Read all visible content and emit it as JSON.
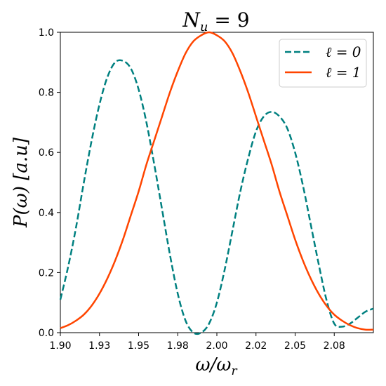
{
  "chart_data": {
    "type": "line",
    "title": "N_u = 9",
    "title_main": "N",
    "title_sub": "u",
    "title_rest": " = 9",
    "xlabel_main": "ω/ω",
    "xlabel_sub": "r",
    "ylabel": "P(ω)  [a.u]",
    "xlim": [
      1.9,
      2.1
    ],
    "ylim": [
      0.0,
      1.0
    ],
    "xticks": [
      1.9,
      1.925,
      1.95,
      1.975,
      2.0,
      2.025,
      2.05,
      2.075
    ],
    "xtick_labels": [
      "1.90",
      "1.93",
      "1.95",
      "1.98",
      "2.00",
      "2.02",
      "2.05",
      "2.08"
    ],
    "yticks": [
      0.0,
      0.2,
      0.4,
      0.6,
      0.8,
      1.0
    ],
    "ytick_labels": [
      "0.0",
      "0.2",
      "0.4",
      "0.6",
      "0.8",
      "1.0"
    ],
    "grid": false,
    "legend_position": "top-right",
    "series": [
      {
        "name": "ℓ = 0",
        "color": "#008080",
        "dash": "dashed",
        "x": [
          1.9,
          1.905,
          1.91,
          1.915,
          1.92,
          1.925,
          1.93,
          1.935,
          1.94,
          1.945,
          1.95,
          1.955,
          1.96,
          1.965,
          1.97,
          1.975,
          1.98,
          1.985,
          1.99,
          1.995,
          2.0,
          2.005,
          2.01,
          2.015,
          2.02,
          2.025,
          2.03,
          2.035,
          2.04,
          2.045,
          2.05,
          2.055,
          2.06,
          2.065,
          2.07,
          2.075,
          2.08,
          2.085,
          2.09,
          2.095,
          2.1
        ],
        "y": [
          0.11,
          0.22,
          0.35,
          0.5,
          0.64,
          0.76,
          0.85,
          0.9,
          0.905,
          0.88,
          0.81,
          0.7,
          0.56,
          0.41,
          0.26,
          0.13,
          0.04,
          0.0,
          0.0,
          0.03,
          0.1,
          0.21,
          0.34,
          0.47,
          0.58,
          0.67,
          0.72,
          0.735,
          0.72,
          0.68,
          0.6,
          0.49,
          0.36,
          0.23,
          0.11,
          0.03,
          0.02,
          0.03,
          0.05,
          0.07,
          0.08
        ]
      },
      {
        "name": "ℓ = 1",
        "color": "#ff4500",
        "dash": "solid",
        "x": [
          1.9,
          1.905,
          1.91,
          1.915,
          1.92,
          1.925,
          1.93,
          1.935,
          1.94,
          1.945,
          1.95,
          1.955,
          1.96,
          1.965,
          1.97,
          1.975,
          1.98,
          1.985,
          1.99,
          1.995,
          2.0,
          2.005,
          2.01,
          2.015,
          2.02,
          2.025,
          2.03,
          2.035,
          2.04,
          2.045,
          2.05,
          2.055,
          2.06,
          2.065,
          2.07,
          2.075,
          2.08,
          2.085,
          2.09,
          2.095,
          2.1
        ],
        "y": [
          0.015,
          0.025,
          0.04,
          0.06,
          0.09,
          0.13,
          0.18,
          0.24,
          0.31,
          0.39,
          0.47,
          0.56,
          0.64,
          0.72,
          0.8,
          0.87,
          0.93,
          0.97,
          0.99,
          1.0,
          0.99,
          0.97,
          0.93,
          0.87,
          0.8,
          0.72,
          0.64,
          0.56,
          0.47,
          0.39,
          0.31,
          0.24,
          0.18,
          0.13,
          0.09,
          0.06,
          0.04,
          0.025,
          0.015,
          0.01,
          0.01
        ]
      }
    ]
  }
}
